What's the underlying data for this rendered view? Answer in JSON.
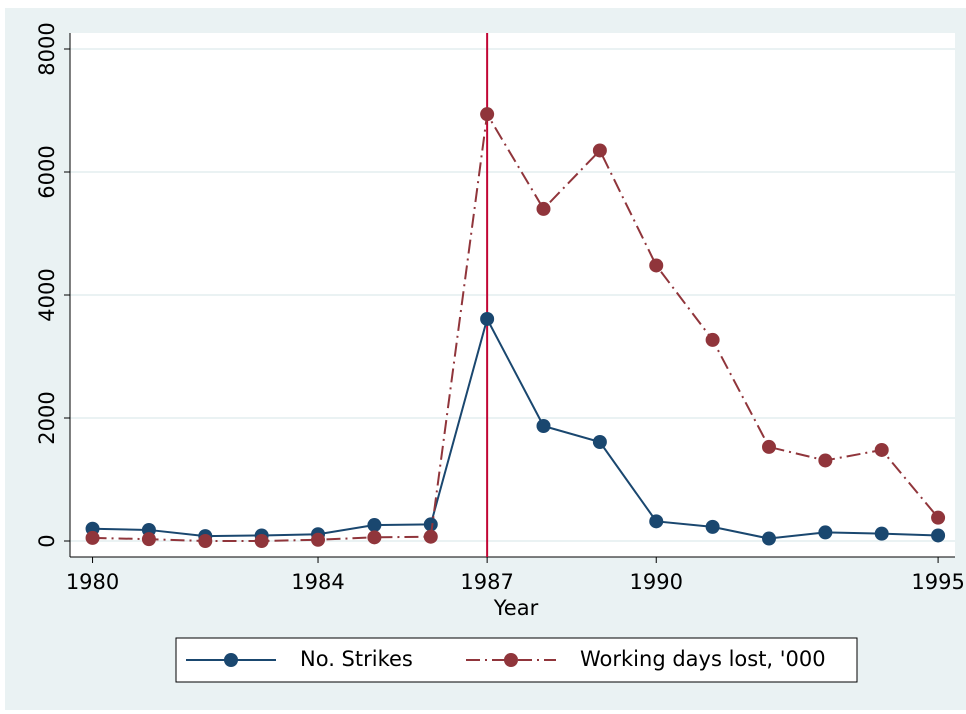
{
  "chart_data": {
    "type": "line",
    "x": [
      1980,
      1981,
      1982,
      1983,
      1984,
      1985,
      1986,
      1987,
      1988,
      1989,
      1990,
      1991,
      1992,
      1993,
      1994,
      1995
    ],
    "series": [
      {
        "name": "No. Strikes",
        "color": "#1a476f",
        "dash": "solid",
        "values": [
          200,
          180,
          80,
          90,
          110,
          260,
          270,
          3610,
          1870,
          1610,
          320,
          230,
          40,
          140,
          120,
          90
        ]
      },
      {
        "name": "Working days lost, '000",
        "color": "#90353b",
        "dash": "dashdot",
        "values": [
          50,
          30,
          0,
          0,
          20,
          60,
          70,
          6940,
          5400,
          6350,
          4480,
          3270,
          1530,
          1310,
          1480,
          380
        ]
      }
    ],
    "xlabel": "Year",
    "xlim": [
      1979.6,
      1995.3
    ],
    "xticks": [
      1980,
      1984,
      1987,
      1990,
      1995
    ],
    "ylim": [
      -260,
      8260
    ],
    "yticks": [
      0,
      2000,
      4000,
      6000,
      8000
    ],
    "xline": 1987,
    "xline_color": "#c10534",
    "grid": true,
    "legend": "bottom"
  }
}
